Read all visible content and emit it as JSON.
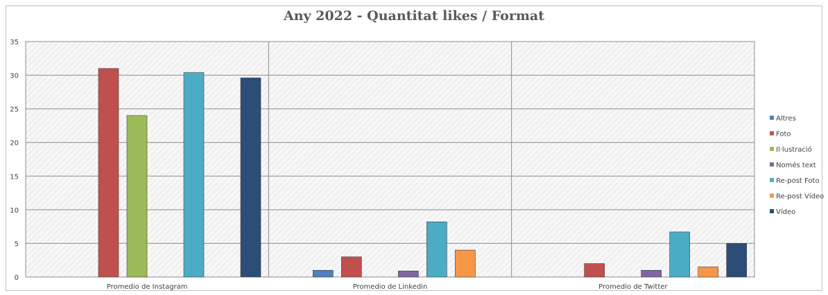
{
  "chart_data": {
    "type": "bar",
    "title": "Any 2022 - Quantitat likes / Format",
    "categories": [
      "Promedio de Instagram",
      "Promedio de Linkedin",
      "Promedio de Twitter"
    ],
    "ylim": [
      0,
      35
    ],
    "yticks": [
      0,
      5,
      10,
      15,
      20,
      25,
      30,
      35
    ],
    "grid": true,
    "legend_position": "right",
    "series": [
      {
        "name": "Altres",
        "color": "#4F81BD",
        "values": [
          null,
          1.0,
          null
        ]
      },
      {
        "name": "Foto",
        "color": "#C0504D",
        "values": [
          31.0,
          3.0,
          2.0
        ]
      },
      {
        "name": "Il·lustració",
        "color": "#9BBB59",
        "values": [
          24.0,
          null,
          null
        ]
      },
      {
        "name": "Només text",
        "color": "#8064A2",
        "values": [
          null,
          0.9,
          1.0
        ]
      },
      {
        "name": "Re-post Foto",
        "color": "#4BACC6",
        "values": [
          30.4,
          8.2,
          6.7
        ]
      },
      {
        "name": "Re-post Vídeo",
        "color": "#F79646",
        "values": [
          null,
          4.0,
          1.5
        ]
      },
      {
        "name": "Vídeo",
        "color": "#2C4D75",
        "values": [
          29.6,
          null,
          5.0
        ]
      }
    ]
  }
}
